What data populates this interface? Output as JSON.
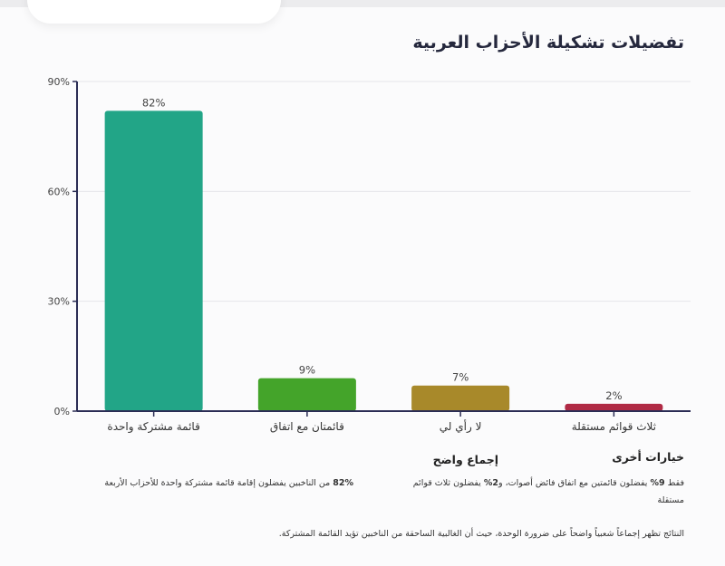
{
  "title": "تفضيلات تشكيلة الأحزاب العربية",
  "chart_data": {
    "type": "bar",
    "title": "تفضيلات تشكيلة الأحزاب العربية",
    "categories": [
      "قائمة مشتركة واحدة",
      "قائمتان مع اتفاق",
      "لا رأي لي",
      "ثلاث قوائم مستقلة"
    ],
    "values": [
      82,
      9,
      7,
      2
    ],
    "value_labels": [
      "82%",
      "9%",
      "7%",
      "2%"
    ],
    "colors": [
      "#22a587",
      "#44a42a",
      "#a8892a",
      "#b02a45"
    ],
    "ylim": [
      0,
      90
    ],
    "yticks": [
      0,
      30,
      60,
      90
    ],
    "ytick_labels": [
      "0%",
      "30%",
      "60%",
      "90%"
    ],
    "xlabel": "",
    "ylabel": "",
    "grid": true
  },
  "sections": {
    "consensus": {
      "heading": "إجماع واضح",
      "bold": "82%",
      "text": " من الناخبين يفضلون إقامة قائمة مشتركة واحدة للأحزاب الأربعة"
    },
    "other": {
      "heading": "خيارات أخرى",
      "pre": "فقط ",
      "bold1": "9%",
      "mid": " يفضلون قائمتين مع اتفاق فائض أصوات، و",
      "bold2": "2%",
      "post": " يفضلون ثلاث قوائم مستقلة"
    }
  },
  "conclusion": "النتائج تظهر إجماعاً شعبياً واضحاً على ضرورة الوحدة، حيث أن الغالبية الساحقة من الناخبين تؤيد القائمة المشتركة."
}
